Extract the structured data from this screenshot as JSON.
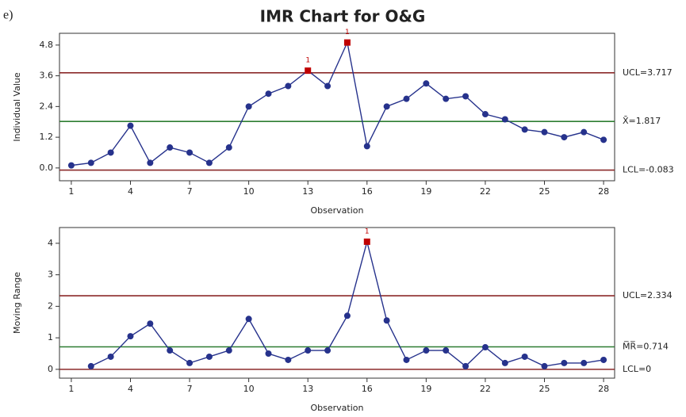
{
  "panel_label": "e)",
  "title": "IMR Chart for O&G",
  "chart_data": [
    {
      "type": "line",
      "y_label": "Individual Value",
      "x_label": "Observation",
      "x": [
        1,
        2,
        3,
        4,
        5,
        6,
        7,
        8,
        9,
        10,
        11,
        12,
        13,
        14,
        15,
        16,
        17,
        18,
        19,
        20,
        21,
        22,
        23,
        24,
        25,
        26,
        27,
        28
      ],
      "values": [
        0.1,
        0.2,
        0.6,
        1.65,
        0.2,
        0.8,
        0.6,
        0.2,
        0.8,
        2.4,
        2.9,
        3.2,
        3.8,
        3.2,
        4.9,
        0.85,
        2.4,
        2.7,
        3.3,
        2.7,
        2.8,
        2.1,
        1.9,
        1.5,
        1.4,
        1.2,
        1.4,
        1.1
      ],
      "point_labels": [
        null,
        null,
        null,
        null,
        null,
        null,
        null,
        null,
        null,
        null,
        null,
        null,
        "1",
        null,
        "1",
        null,
        null,
        null,
        null,
        null,
        null,
        null,
        null,
        null,
        null,
        null,
        null,
        null
      ],
      "color": "#26328c",
      "alert_color": "#c00000",
      "xlim": [
        0.4,
        28.56
      ],
      "ylim": [
        -0.5,
        5.26
      ],
      "xticks": [
        1,
        4,
        7,
        10,
        13,
        16,
        19,
        22,
        25,
        28
      ],
      "yticks": [
        {
          "value": 0,
          "label": "0.0"
        },
        1.2,
        2.4,
        3.6,
        4.8
      ],
      "control_limits": [
        {
          "value": 3.717,
          "label": "UCL=3.717",
          "color": "#8b2a2a"
        },
        {
          "value": 1.817,
          "label": "X̄=1.817",
          "color": "#2e7d32"
        },
        {
          "value": -0.083,
          "label": "LCL=-0.083",
          "color": "#8b2a2a"
        }
      ]
    },
    {
      "type": "line",
      "y_label": "Moving Range",
      "x_label": "Observation",
      "x": [
        1,
        2,
        3,
        4,
        5,
        6,
        7,
        8,
        9,
        10,
        11,
        12,
        13,
        14,
        15,
        16,
        17,
        18,
        19,
        20,
        21,
        22,
        23,
        24,
        25,
        26,
        27,
        28
      ],
      "values": [
        null,
        0.1,
        0.4,
        1.05,
        1.45,
        0.6,
        0.2,
        0.4,
        0.6,
        1.6,
        0.5,
        0.3,
        0.6,
        0.6,
        1.7,
        4.05,
        1.55,
        0.3,
        0.6,
        0.6,
        0.1,
        0.7,
        0.2,
        0.4,
        0.1,
        0.2,
        0.2,
        0.3
      ],
      "point_labels": [
        null,
        null,
        null,
        null,
        null,
        null,
        null,
        null,
        null,
        null,
        null,
        null,
        null,
        null,
        null,
        "1",
        null,
        null,
        null,
        null,
        null,
        null,
        null,
        null,
        null,
        null,
        null,
        null
      ],
      "color": "#26328c",
      "alert_color": "#c00000",
      "xlim": [
        0.4,
        28.56
      ],
      "ylim": [
        -0.28,
        4.5
      ],
      "xticks": [
        1,
        4,
        7,
        10,
        13,
        16,
        19,
        22,
        25,
        28
      ],
      "yticks": [
        0,
        1,
        2,
        3,
        4
      ],
      "control_limits": [
        {
          "value": 2.334,
          "label": "UCL=2.334",
          "color": "#8b2a2a"
        },
        {
          "value": 0.714,
          "label": "M̅R̅=0.714",
          "color": "#2e7d32"
        },
        {
          "value": 0,
          "label": "LCL=0",
          "color": "#8b2a2a"
        }
      ]
    }
  ]
}
